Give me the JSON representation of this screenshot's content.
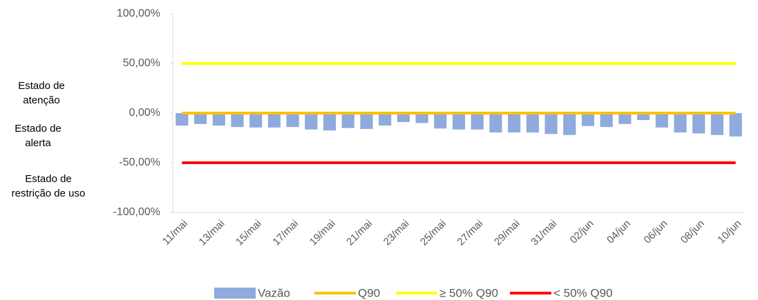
{
  "chart_data": {
    "type": "bar",
    "categories": [
      "11/mai",
      null,
      "13/mai",
      null,
      "15/mai",
      null,
      "17/mai",
      null,
      "19/mai",
      null,
      "21/mai",
      null,
      "23/mai",
      null,
      "25/mai",
      null,
      "27/mai",
      null,
      "29/mai",
      null,
      "31/mai",
      null,
      "02/jun",
      null,
      "04/jun",
      null,
      "06/jun",
      null,
      "08/jun",
      null,
      "10/jun"
    ],
    "series": [
      {
        "name": "Vazão",
        "type": "bar",
        "color": "#8faadc",
        "values": [
          -12.5,
          -11,
          -12.5,
          -14,
          -14.5,
          -14.5,
          -14,
          -16.5,
          -17.5,
          -15,
          -16,
          -12.5,
          -9,
          -10,
          -15.5,
          -16.5,
          -16.5,
          -19.5,
          -19.5,
          -19.5,
          -21,
          -22,
          -13,
          -14,
          -11,
          -7,
          -14.5,
          -19.5,
          -20.5,
          -22,
          -23.5
        ]
      },
      {
        "name": "Q90",
        "type": "line",
        "color": "#ffc000",
        "values": [
          0,
          0,
          0,
          0,
          0,
          0,
          0,
          0,
          0,
          0,
          0,
          0,
          0,
          0,
          0,
          0,
          0,
          0,
          0,
          0,
          0,
          0,
          0,
          0,
          0,
          0,
          0,
          0,
          0,
          0,
          0
        ]
      },
      {
        "name": "≥ 50% Q90",
        "type": "line",
        "color": "#ffff00",
        "values": [
          50,
          50,
          50,
          50,
          50,
          50,
          50,
          50,
          50,
          50,
          50,
          50,
          50,
          50,
          50,
          50,
          50,
          50,
          50,
          50,
          50,
          50,
          50,
          50,
          50,
          50,
          50,
          50,
          50,
          50,
          50
        ]
      },
      {
        "name": "< 50% Q90",
        "type": "line",
        "color": "#ff0000",
        "values": [
          -50,
          -50,
          -50,
          -50,
          -50,
          -50,
          -50,
          -50,
          -50,
          -50,
          -50,
          -50,
          -50,
          -50,
          -50,
          -50,
          -50,
          -50,
          -50,
          -50,
          -50,
          -50,
          -50,
          -50,
          -50,
          -50,
          -50,
          -50,
          -50,
          -50,
          -50
        ]
      }
    ],
    "ylim": [
      -100,
      100
    ],
    "yticks": [
      {
        "value": -100,
        "label": "-100,00%"
      },
      {
        "value": -50,
        "label": "-50,00%"
      },
      {
        "value": 0,
        "label": "0,00%"
      },
      {
        "value": 50,
        "label": "50,00%"
      },
      {
        "value": 100,
        "label": "100,00%"
      }
    ],
    "annotations": [
      "Estado de atenção",
      "Estado de alerta",
      "Estado de restrição de uso"
    ],
    "legend": "bottom"
  }
}
